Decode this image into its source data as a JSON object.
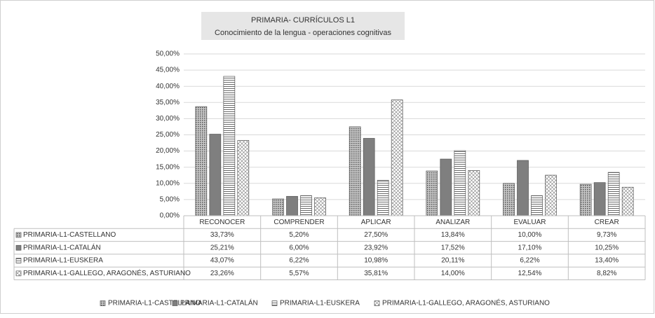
{
  "chart_data": {
    "type": "bar",
    "title": "PRIMARIA- CURRÍCULOS L1",
    "subtitle": "Conocimiento de la lengua - operaciones cognitivas",
    "categories": [
      "RECONOCER",
      "COMPRENDER",
      "APLICAR",
      "ANALIZAR",
      "EVALUAR",
      "CREAR"
    ],
    "series": [
      {
        "name": "PRIMARIA-L1-CASTELLANO",
        "color": "#9a9a9a",
        "pattern": "dots",
        "values": [
          33.73,
          5.2,
          27.5,
          13.84,
          10.0,
          9.73
        ],
        "value_labels": [
          "33,73%",
          "5,20%",
          "27,50%",
          "13,84%",
          "10,00%",
          "9,73%"
        ]
      },
      {
        "name": "PRIMARIA-L1-CATALÁN",
        "color": "#7f7f7f",
        "pattern": "solid",
        "values": [
          25.21,
          6.0,
          23.92,
          17.52,
          17.1,
          10.25
        ],
        "value_labels": [
          "25,21%",
          "6,00%",
          "23,92%",
          "17,52%",
          "17,10%",
          "10,25%"
        ]
      },
      {
        "name": "PRIMARIA-L1-EUSKERA",
        "color": "#555555",
        "pattern": "hlines",
        "values": [
          43.07,
          6.22,
          10.98,
          20.11,
          6.22,
          13.4
        ],
        "value_labels": [
          "43,07%",
          "6,22%",
          "10,98%",
          "20,11%",
          "6,22%",
          "13,40%"
        ]
      },
      {
        "name": "PRIMARIA-L1-GALLEGO, ARAGONÉS, ASTURIANO",
        "color": "#777777",
        "pattern": "cross",
        "values": [
          23.26,
          5.57,
          35.81,
          14.0,
          12.54,
          8.82
        ],
        "value_labels": [
          "23,26%",
          "5,57%",
          "35,81%",
          "14,00%",
          "12,54%",
          "8,82%"
        ]
      }
    ],
    "ylim": [
      0,
      50
    ],
    "yticks": [
      {
        "value": 0,
        "label": "0,00%"
      },
      {
        "value": 5,
        "label": "5,00%"
      },
      {
        "value": 10,
        "label": "10,00%"
      },
      {
        "value": 15,
        "label": "15,00%"
      },
      {
        "value": 20,
        "label": "20,00%"
      },
      {
        "value": 25,
        "label": "25,00%"
      },
      {
        "value": 30,
        "label": "30,00%"
      },
      {
        "value": 35,
        "label": "35,00%"
      },
      {
        "value": 40,
        "label": "40,00%"
      },
      {
        "value": 45,
        "label": "45,00%"
      },
      {
        "value": 50,
        "label": "50,00%"
      }
    ],
    "grid": true
  }
}
